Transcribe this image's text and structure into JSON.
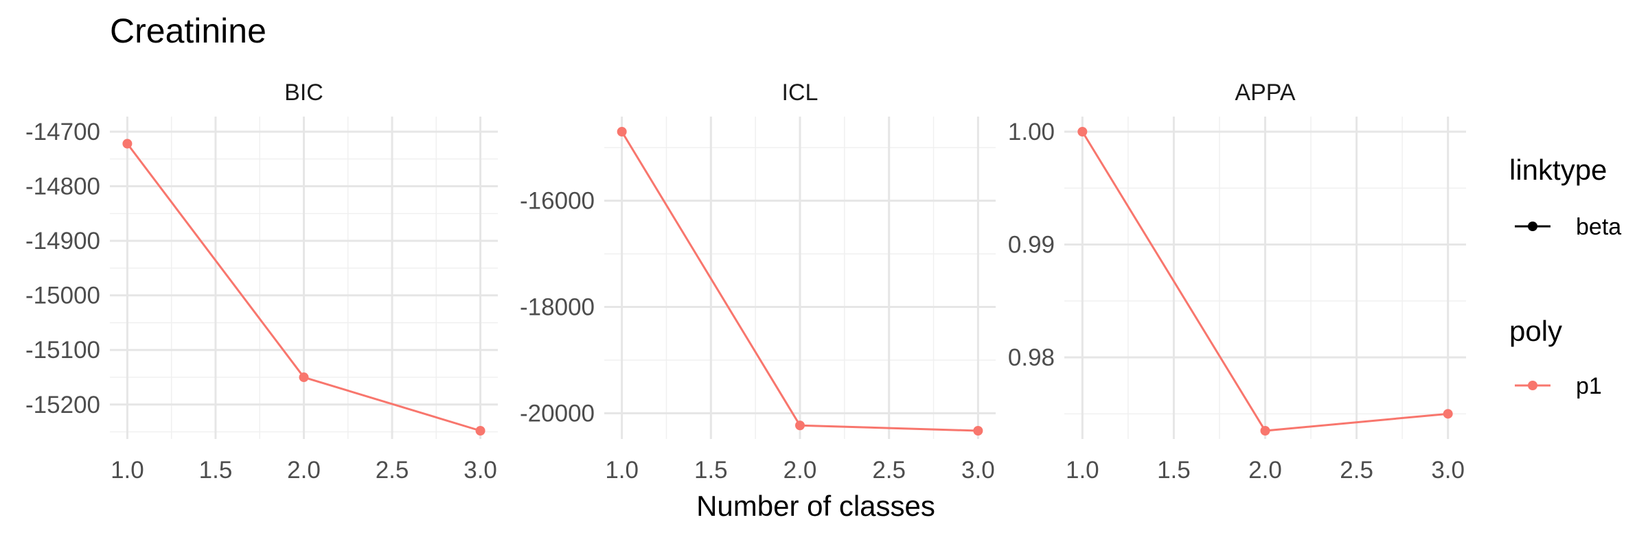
{
  "chart_data": {
    "type": "line",
    "title": "Creatinine",
    "xlabel": "Number of classes",
    "x": [
      1.0,
      2.0,
      3.0
    ],
    "x_ticks": [
      "1.0",
      "1.5",
      "2.0",
      "2.5",
      "3.0"
    ],
    "xlim": [
      1.0,
      3.0
    ],
    "grid": true,
    "line_color": "#F8766D",
    "panels": [
      {
        "name": "BIC",
        "values": [
          -14722,
          -15150,
          -15248
        ],
        "ylim": [
          -15248,
          -14700
        ],
        "y_ticks": [
          -14700,
          -14800,
          -14900,
          -15000,
          -15100,
          -15200
        ],
        "y_tick_labels": [
          "-14700",
          "-14800",
          "-14900",
          "-15000",
          "-15100",
          "-15200"
        ]
      },
      {
        "name": "ICL",
        "values": [
          -14700,
          -20230,
          -20330
        ],
        "ylim": [
          -20330,
          -14700
        ],
        "y_ticks": [
          -16000,
          -18000,
          -20000
        ],
        "y_tick_labels": [
          "-16000",
          "-18000",
          "-20000"
        ]
      },
      {
        "name": "APPA",
        "values": [
          1.0,
          0.9735,
          0.975
        ],
        "ylim": [
          0.9735,
          1.0
        ],
        "y_ticks": [
          1.0,
          0.99,
          0.98
        ],
        "y_tick_labels": [
          "1.00",
          "0.99",
          "0.98"
        ]
      }
    ],
    "legend": {
      "position": "right",
      "groups": [
        {
          "title": "linktype",
          "label": "beta",
          "color": "#000000"
        },
        {
          "title": "poly",
          "label": "p1",
          "color": "#F8766D"
        }
      ]
    }
  }
}
